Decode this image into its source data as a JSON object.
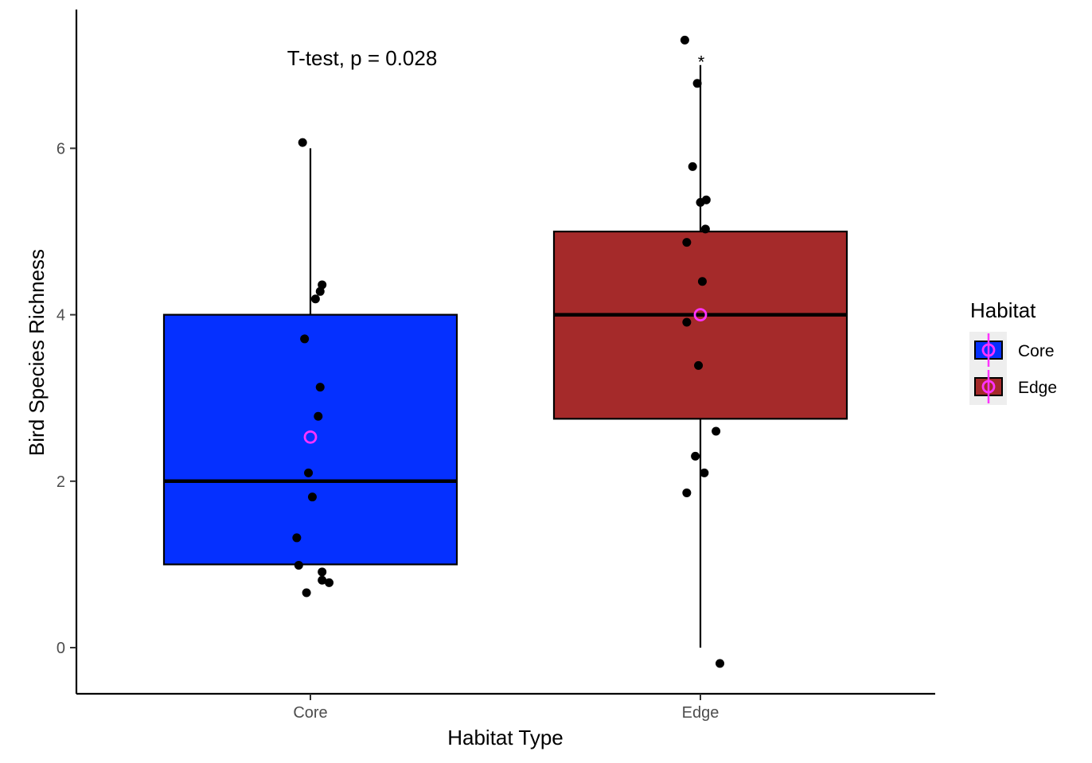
{
  "chart_data": {
    "type": "box",
    "xlabel": "Habitat Type",
    "ylabel": "Bird Species Richness",
    "ylim": [
      -0.55,
      7.65
    ],
    "yticks": [
      0,
      2,
      4,
      6
    ],
    "categories": [
      "Core",
      "Edge"
    ],
    "annotation": "T-test, p = 0.028",
    "legend": {
      "title": "Habitat",
      "entries": [
        "Core",
        "Edge"
      ],
      "position": "right"
    },
    "grid": false,
    "series": [
      {
        "name": "Core",
        "color": "#0530FF",
        "box": {
          "q1": 1.0,
          "median": 2.0,
          "q3": 4.0,
          "whisker_low": 1.0,
          "whisker_high": 6.0
        },
        "mean": 2.53,
        "outliers": [],
        "points": [
          {
            "dx": -0.02,
            "y": 6.07
          },
          {
            "dx": 0.03,
            "y": 4.36
          },
          {
            "dx": 0.025,
            "y": 4.28
          },
          {
            "dx": 0.013,
            "y": 4.19
          },
          {
            "dx": -0.015,
            "y": 3.71
          },
          {
            "dx": 0.025,
            "y": 3.13
          },
          {
            "dx": 0.02,
            "y": 2.78
          },
          {
            "dx": -0.005,
            "y": 2.1
          },
          {
            "dx": 0.005,
            "y": 1.81
          },
          {
            "dx": -0.035,
            "y": 1.32
          },
          {
            "dx": -0.03,
            "y": 0.99
          },
          {
            "dx": 0.03,
            "y": 0.91
          },
          {
            "dx": 0.03,
            "y": 0.81
          },
          {
            "dx": 0.048,
            "y": 0.78
          },
          {
            "dx": -0.01,
            "y": 0.66
          }
        ]
      },
      {
        "name": "Edge",
        "color": "#A52A2A",
        "box": {
          "q1": 2.75,
          "median": 4.0,
          "q3": 5.0,
          "whisker_low": 0.0,
          "whisker_high": 7.0
        },
        "mean": 4.0,
        "outliers": [
          {
            "y": 7.08,
            "symbol": "*"
          }
        ],
        "points": [
          {
            "dx": -0.04,
            "y": 7.3
          },
          {
            "dx": -0.008,
            "y": 6.78
          },
          {
            "dx": -0.02,
            "y": 5.78
          },
          {
            "dx": 0.015,
            "y": 5.38
          },
          {
            "dx": 0.0,
            "y": 5.35
          },
          {
            "dx": 0.013,
            "y": 5.03
          },
          {
            "dx": -0.035,
            "y": 4.87
          },
          {
            "dx": 0.005,
            "y": 4.4
          },
          {
            "dx": -0.035,
            "y": 3.91
          },
          {
            "dx": -0.005,
            "y": 3.39
          },
          {
            "dx": 0.04,
            "y": 2.6
          },
          {
            "dx": -0.013,
            "y": 2.3
          },
          {
            "dx": 0.01,
            "y": 2.1
          },
          {
            "dx": -0.035,
            "y": 1.86
          },
          {
            "dx": 0.05,
            "y": -0.19
          }
        ]
      }
    ],
    "colors": {
      "mean_marker": "#FF33FF",
      "points": "#000000",
      "axis": "#000000",
      "tick_text": "#4d4d4d"
    }
  }
}
